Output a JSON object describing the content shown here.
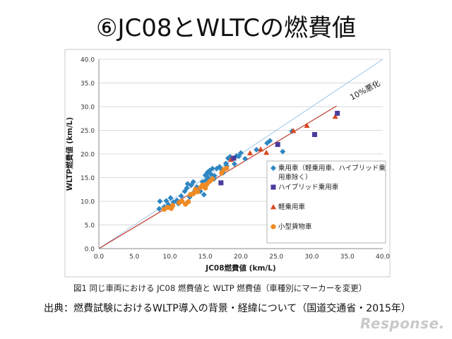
{
  "slide": {
    "title": "⑥JC08とWLTCの燃費値",
    "figure_caption": "図1 同じ車両における JC08 燃費値と WLTP 燃費値（車種別にマーカーを変更）",
    "source": "出典：燃費試験におけるWLTP導入の背景・経緯について（国道交通省・2015年）",
    "logo": "Response."
  },
  "chart_data": {
    "type": "scatter",
    "title": "",
    "xlabel": "JC08燃費値 (km/L)",
    "ylabel": "WLTP燃費値 (km/L)",
    "xlim": [
      0,
      40
    ],
    "ylim": [
      0,
      40
    ],
    "x_ticks": [
      "0.0",
      "5.0",
      "10.0",
      "15.0",
      "20.0",
      "25.0",
      "30.0",
      "35.0",
      "40.0"
    ],
    "y_ticks": [
      "0.0",
      "5.0",
      "10.0",
      "15.0",
      "20.0",
      "25.0",
      "30.0",
      "35.0",
      "40.0"
    ],
    "annotation": "10%悪化",
    "reference_lines": [
      {
        "name": "y = x",
        "color": "#9cc3e6",
        "from": [
          0,
          0
        ],
        "to": [
          40,
          40
        ]
      },
      {
        "name": "10%悪化",
        "color": "#c0392b",
        "from": [
          0,
          0
        ],
        "to": [
          33.5,
          30.15
        ]
      }
    ],
    "legend": {
      "position": "right",
      "entries": [
        {
          "label_lines": [
            "乗用車（軽乗用車、ハイブリッド乗",
            "用車除く）"
          ],
          "marker": "diamond",
          "color": "#2e86c1"
        },
        {
          "label_lines": [
            "ハイブリッド乗用車"
          ],
          "marker": "square",
          "color": "#4a3b9c"
        },
        {
          "label_lines": [
            "軽乗用車"
          ],
          "marker": "triangle",
          "color": "#d9471f"
        },
        {
          "label_lines": [
            "小型貨物車"
          ],
          "marker": "circle",
          "color": "#f08a24"
        }
      ]
    },
    "series": [
      {
        "name": "乗用車（軽乗用車、ハイブリッド乗用車除く）",
        "marker": "diamond",
        "color": "#2e86c1",
        "points": [
          [
            8.5,
            8.4
          ],
          [
            8.6,
            10.0
          ],
          [
            9.2,
            8.8
          ],
          [
            9.5,
            10.1
          ],
          [
            9.8,
            9.3
          ],
          [
            10.1,
            10.7
          ],
          [
            10.5,
            9.8
          ],
          [
            11.0,
            10.2
          ],
          [
            11.2,
            9.5
          ],
          [
            11.6,
            11.1
          ],
          [
            12.1,
            12.1
          ],
          [
            12.4,
            12.8
          ],
          [
            12.5,
            13.7
          ],
          [
            12.8,
            10.9
          ],
          [
            13.0,
            13.4
          ],
          [
            13.3,
            14.1
          ],
          [
            13.5,
            12.1
          ],
          [
            13.8,
            13.0
          ],
          [
            14.0,
            12.6
          ],
          [
            14.3,
            12.1
          ],
          [
            14.6,
            14.1
          ],
          [
            14.8,
            11.4
          ],
          [
            15.0,
            15.5
          ],
          [
            15.1,
            14.4
          ],
          [
            15.3,
            16.1
          ],
          [
            15.4,
            15.0
          ],
          [
            15.6,
            16.5
          ],
          [
            15.8,
            15.7
          ],
          [
            16.0,
            16.9
          ],
          [
            16.2,
            14.7
          ],
          [
            16.3,
            15.4
          ],
          [
            16.6,
            16.9
          ],
          [
            17.0,
            17.3
          ],
          [
            17.3,
            16.7
          ],
          [
            17.5,
            16.0
          ],
          [
            17.9,
            18.0
          ],
          [
            18.0,
            17.5
          ],
          [
            18.2,
            19.1
          ],
          [
            18.5,
            19.4
          ],
          [
            18.8,
            18.9
          ],
          [
            19.1,
            17.9
          ],
          [
            19.4,
            19.6
          ],
          [
            19.7,
            19.5
          ],
          [
            20.0,
            20.2
          ],
          [
            20.6,
            19.0
          ],
          [
            22.2,
            20.9
          ],
          [
            23.7,
            22.3
          ],
          [
            24.1,
            22.8
          ],
          [
            25.9,
            20.5
          ],
          [
            27.2,
            24.8
          ]
        ]
      },
      {
        "name": "ハイブリッド乗用車",
        "marker": "square",
        "color": "#4a3b9c",
        "points": [
          [
            17.2,
            13.9
          ],
          [
            19.0,
            19.1
          ],
          [
            25.2,
            22.0
          ],
          [
            30.4,
            24.1
          ],
          [
            33.6,
            28.6
          ]
        ]
      },
      {
        "name": "軽乗用車",
        "marker": "triangle",
        "color": "#d9471f",
        "points": [
          [
            18.6,
            18.8
          ],
          [
            21.3,
            20.2
          ],
          [
            22.8,
            21.0
          ],
          [
            23.6,
            20.3
          ],
          [
            27.4,
            24.9
          ],
          [
            29.3,
            26.0
          ],
          [
            33.3,
            27.9
          ]
        ]
      },
      {
        "name": "小型貨物車",
        "marker": "circle",
        "color": "#f08a24",
        "points": [
          [
            9.2,
            8.3
          ],
          [
            9.7,
            8.7
          ],
          [
            10.2,
            8.5
          ],
          [
            10.4,
            9.1
          ],
          [
            11.3,
            9.7
          ],
          [
            11.7,
            10.0
          ],
          [
            12.2,
            9.4
          ],
          [
            12.6,
            9.9
          ],
          [
            12.9,
            11.4
          ],
          [
            13.3,
            11.6
          ],
          [
            13.6,
            12.5
          ],
          [
            13.9,
            12.0
          ],
          [
            14.3,
            12.9
          ],
          [
            14.6,
            13.4
          ],
          [
            15.0,
            12.8
          ],
          [
            15.2,
            13.6
          ],
          [
            15.6,
            14.2
          ],
          [
            16.0,
            14.7
          ],
          [
            17.3,
            16.0
          ],
          [
            17.6,
            16.7
          ],
          [
            18.0,
            17.0
          ]
        ]
      }
    ]
  }
}
